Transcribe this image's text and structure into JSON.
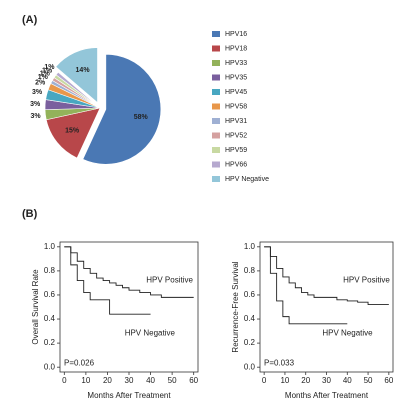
{
  "panel_labels": [
    "(A)",
    "(B)"
  ],
  "chart_data": [
    {
      "type": "pie",
      "categories": [
        "HPV16",
        "HPV18",
        "HPV33",
        "HPV35",
        "HPV45",
        "HPV58",
        "HPV31",
        "HPV52",
        "HPV59",
        "HPV66",
        "HPV Negative"
      ],
      "values": [
        58,
        15,
        3,
        3,
        3,
        2,
        1,
        1,
        1,
        1,
        14
      ],
      "value_labels": [
        "58%",
        "15%",
        "3%",
        "3%",
        "3%",
        "2%",
        "1%",
        "1%",
        "1%",
        "1%",
        "14%"
      ],
      "colors": [
        "#4a78b4",
        "#b8474a",
        "#93b25a",
        "#7a5f9e",
        "#48a7c1",
        "#e8974a",
        "#9fb0d3",
        "#d5a1a0",
        "#c8d9a2",
        "#b6a9cf",
        "#93c6d9"
      ],
      "legend": "right"
    },
    {
      "type": "line",
      "x": [
        0,
        3,
        6,
        9,
        12,
        15,
        18,
        21,
        24,
        27,
        30,
        35,
        40,
        45,
        50,
        55,
        60
      ],
      "series": [
        {
          "name": "HPV Positive",
          "color": "#222222",
          "values": [
            1.0,
            0.95,
            0.88,
            0.82,
            0.78,
            0.74,
            0.72,
            0.7,
            0.68,
            0.66,
            0.64,
            0.62,
            0.6,
            0.58,
            0.58,
            0.58,
            0.58
          ]
        },
        {
          "name": "HPV Negative",
          "color": "#222222",
          "values": [
            1.0,
            0.85,
            0.72,
            0.62,
            0.56,
            0.56,
            0.56,
            0.44,
            0.44,
            0.44,
            0.44,
            0.44,
            0.44,
            null,
            null,
            null,
            null
          ]
        }
      ],
      "annotation": "P=0.026",
      "x_label": "Months After Treatment",
      "y_label": "Overall Survival Rate",
      "xlim": [
        -2,
        62
      ],
      "ylim": [
        -0.04,
        1.04
      ],
      "xticks": [
        0,
        10,
        20,
        30,
        40,
        50,
        60
      ],
      "yticks": [
        {
          "value": 0,
          "label": "0.0"
        },
        {
          "value": 0.2,
          "label": "0.2"
        },
        {
          "value": 0.4,
          "label": "0.4"
        },
        {
          "value": 0.6,
          "label": "0.6"
        },
        {
          "value": 0.8,
          "label": "0.8"
        },
        {
          "value": 1,
          "label": "1.0"
        }
      ]
    },
    {
      "type": "line",
      "x": [
        0,
        3,
        6,
        9,
        12,
        15,
        18,
        21,
        24,
        27,
        30,
        35,
        40,
        45,
        50,
        55,
        60
      ],
      "series": [
        {
          "name": "HPV Positive",
          "color": "#222222",
          "values": [
            1.0,
            0.92,
            0.82,
            0.75,
            0.7,
            0.66,
            0.62,
            0.6,
            0.58,
            0.58,
            0.58,
            0.56,
            0.55,
            0.54,
            0.52,
            0.52,
            0.52
          ]
        },
        {
          "name": "HPV Negative",
          "color": "#222222",
          "values": [
            1.0,
            0.78,
            0.55,
            0.42,
            0.36,
            0.36,
            0.36,
            0.36,
            0.36,
            0.36,
            0.36,
            0.36,
            0.36,
            null,
            null,
            null,
            null
          ]
        }
      ],
      "annotation": "P=0.033",
      "x_label": "Months After Treatment",
      "y_label": "Recurrence-Free Survival",
      "xlim": [
        -2,
        62
      ],
      "ylim": [
        -0.04,
        1.04
      ],
      "xticks": [
        0,
        10,
        20,
        30,
        40,
        50,
        60
      ],
      "yticks": [
        {
          "value": 0,
          "label": "0.0"
        },
        {
          "value": 0.2,
          "label": "0.2"
        },
        {
          "value": 0.4,
          "label": "0.4"
        },
        {
          "value": 0.6,
          "label": "0.6"
        },
        {
          "value": 0.8,
          "label": "0.8"
        },
        {
          "value": 1,
          "label": "1.0"
        }
      ]
    }
  ]
}
